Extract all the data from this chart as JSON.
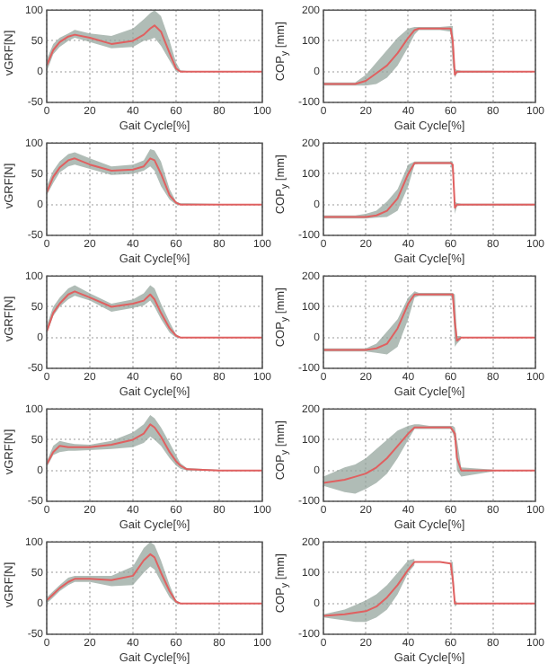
{
  "chart_data": [
    {
      "type": "line",
      "xlabel": "Gait Cycle[%]",
      "ylabel": "vGRF[N]",
      "xlim": [
        0,
        100
      ],
      "xticks": [
        0,
        20,
        40,
        60,
        80,
        100
      ],
      "ylim": [
        -50,
        100
      ],
      "yticks": [
        -50,
        0,
        50,
        100
      ],
      "grid": true,
      "x": [
        0,
        3,
        6,
        10,
        13,
        20,
        30,
        40,
        45,
        48,
        50,
        53,
        57,
        60,
        62,
        65,
        80,
        100
      ],
      "series": [
        {
          "color": "#e06060",
          "values": [
            10,
            35,
            48,
            57,
            60,
            55,
            45,
            50,
            60,
            70,
            75,
            65,
            30,
            5,
            0,
            0,
            0,
            0
          ],
          "lower": [
            0,
            28,
            40,
            50,
            55,
            48,
            38,
            40,
            50,
            52,
            55,
            42,
            18,
            0,
            0,
            0,
            0,
            null
          ],
          "upper": [
            20,
            45,
            55,
            62,
            68,
            62,
            58,
            70,
            85,
            95,
            100,
            90,
            50,
            15,
            2,
            1,
            1,
            null
          ]
        }
      ]
    },
    {
      "type": "line",
      "xlabel": "Gait Cycle[%]",
      "ylabel": "COP$_{y}$ [mm]",
      "xlim": [
        0,
        100
      ],
      "xticks": [
        0,
        20,
        40,
        60,
        80,
        100
      ],
      "ylim": [
        -100,
        200
      ],
      "yticks": [
        -100,
        0,
        100,
        200
      ],
      "grid": true,
      "x": [
        0,
        10,
        15,
        20,
        25,
        30,
        35,
        40,
        43,
        45,
        50,
        55,
        60,
        61,
        62,
        63,
        65,
        80,
        100
      ],
      "series": [
        {
          "color": "#e06060",
          "values": [
            -40,
            -40,
            -40,
            -30,
            -5,
            20,
            60,
            110,
            135,
            140,
            140,
            140,
            140,
            100,
            -10,
            0,
            0,
            0,
            0
          ],
          "lower": [
            -45,
            -45,
            -45,
            -45,
            -40,
            -20,
            20,
            80,
            120,
            135,
            135,
            135,
            130,
            20,
            -20,
            -5,
            -3,
            -3,
            null
          ],
          "upper": [
            -35,
            -35,
            -35,
            -10,
            30,
            70,
            110,
            140,
            145,
            145,
            145,
            145,
            148,
            148,
            10,
            5,
            3,
            3,
            null
          ]
        }
      ]
    },
    {
      "type": "line",
      "xlabel": "Gait Cycle[%]",
      "ylabel": "vGRF[N]",
      "xlim": [
        0,
        100
      ],
      "xticks": [
        0,
        20,
        40,
        60,
        80,
        100
      ],
      "ylim": [
        -50,
        100
      ],
      "yticks": [
        -50,
        0,
        50,
        100
      ],
      "grid": true,
      "x": [
        0,
        3,
        6,
        10,
        13,
        20,
        30,
        40,
        45,
        48,
        50,
        53,
        57,
        60,
        62,
        65,
        80,
        100
      ],
      "series": [
        {
          "color": "#e06060",
          "values": [
            20,
            45,
            60,
            72,
            75,
            65,
            55,
            57,
            62,
            75,
            72,
            50,
            15,
            3,
            0,
            0,
            0,
            0
          ],
          "lower": [
            15,
            35,
            52,
            62,
            65,
            58,
            48,
            50,
            55,
            62,
            55,
            30,
            8,
            0,
            0,
            0,
            0,
            0
          ],
          "upper": [
            30,
            55,
            70,
            82,
            85,
            75,
            62,
            65,
            72,
            90,
            88,
            70,
            25,
            5,
            2,
            2,
            1,
            1
          ]
        }
      ]
    },
    {
      "type": "line",
      "xlabel": "Gait Cycle[%]",
      "ylabel": "COP$_{y}$ [mm]",
      "xlim": [
        0,
        100
      ],
      "xticks": [
        0,
        20,
        40,
        60,
        80,
        100
      ],
      "ylim": [
        -100,
        200
      ],
      "yticks": [
        -100,
        0,
        100,
        200
      ],
      "grid": true,
      "x": [
        0,
        10,
        15,
        20,
        25,
        30,
        35,
        40,
        43,
        45,
        50,
        55,
        60,
        61,
        62,
        63,
        65,
        80,
        100
      ],
      "series": [
        {
          "color": "#e06060",
          "values": [
            -40,
            -40,
            -40,
            -40,
            -35,
            -20,
            20,
            100,
            135,
            135,
            135,
            135,
            135,
            130,
            -10,
            0,
            0,
            0,
            0
          ],
          "lower": [
            -45,
            -45,
            -45,
            -45,
            -42,
            -40,
            -20,
            60,
            130,
            132,
            132,
            132,
            132,
            100,
            -30,
            -5,
            -3,
            -3,
            -3
          ],
          "upper": [
            -35,
            -35,
            -35,
            -30,
            -20,
            10,
            50,
            130,
            140,
            140,
            140,
            140,
            140,
            140,
            10,
            5,
            3,
            3,
            3
          ]
        }
      ]
    },
    {
      "type": "line",
      "xlabel": "Gait Cycle[%]",
      "ylabel": "vGRF[N]",
      "xlim": [
        0,
        100
      ],
      "xticks": [
        0,
        20,
        40,
        60,
        80,
        100
      ],
      "ylim": [
        -50,
        100
      ],
      "yticks": [
        -50,
        0,
        50,
        100
      ],
      "grid": true,
      "x": [
        0,
        3,
        6,
        10,
        13,
        20,
        30,
        40,
        45,
        48,
        50,
        53,
        57,
        60,
        62,
        65,
        80,
        100
      ],
      "series": [
        {
          "color": "#e06060",
          "values": [
            10,
            40,
            55,
            70,
            75,
            65,
            50,
            55,
            60,
            70,
            62,
            40,
            15,
            3,
            0,
            0,
            0,
            0
          ],
          "lower": [
            5,
            35,
            50,
            62,
            68,
            60,
            42,
            48,
            52,
            60,
            50,
            30,
            8,
            0,
            0,
            null,
            null,
            null
          ],
          "upper": [
            20,
            50,
            65,
            80,
            85,
            72,
            55,
            62,
            72,
            85,
            80,
            55,
            25,
            5,
            1,
            null,
            null,
            null
          ]
        }
      ]
    },
    {
      "type": "line",
      "xlabel": "Gait Cycle[%]",
      "ylabel": "COP$_{y}$ [mm]",
      "xlim": [
        0,
        100
      ],
      "xticks": [
        0,
        20,
        40,
        60,
        80,
        100
      ],
      "ylim": [
        -100,
        200
      ],
      "yticks": [
        -100,
        0,
        100,
        200
      ],
      "grid": true,
      "x": [
        0,
        10,
        15,
        20,
        25,
        30,
        35,
        40,
        43,
        45,
        50,
        55,
        60,
        61,
        62,
        63,
        65,
        80,
        100
      ],
      "series": [
        {
          "color": "#e06060",
          "values": [
            -40,
            -40,
            -40,
            -40,
            -35,
            -20,
            30,
            110,
            140,
            140,
            140,
            140,
            140,
            140,
            50,
            -10,
            0,
            0,
            0
          ],
          "lower": [
            -45,
            -45,
            -45,
            -45,
            -50,
            -55,
            -30,
            60,
            130,
            135,
            135,
            135,
            135,
            120,
            -30,
            -20,
            -5,
            null,
            null
          ],
          "upper": [
            -35,
            -35,
            -35,
            -35,
            -20,
            20,
            60,
            130,
            150,
            145,
            145,
            145,
            145,
            145,
            140,
            5,
            5,
            null,
            null
          ]
        }
      ]
    },
    {
      "type": "line",
      "xlabel": "Gait Cycle[%]",
      "ylabel": "vGRF[N]",
      "xlim": [
        0,
        100
      ],
      "xticks": [
        0,
        20,
        40,
        60,
        80,
        100
      ],
      "ylim": [
        -50,
        100
      ],
      "yticks": [
        -50,
        0,
        50,
        100
      ],
      "grid": true,
      "x": [
        0,
        3,
        6,
        10,
        13,
        20,
        30,
        40,
        45,
        48,
        50,
        53,
        57,
        60,
        62,
        65,
        80,
        100
      ],
      "series": [
        {
          "color": "#e06060",
          "values": [
            10,
            30,
            40,
            38,
            38,
            38,
            42,
            50,
            60,
            75,
            70,
            55,
            30,
            15,
            8,
            2,
            0,
            0
          ],
          "lower": [
            5,
            25,
            30,
            32,
            32,
            33,
            35,
            38,
            45,
            55,
            50,
            40,
            20,
            8,
            3,
            0,
            0,
            null
          ],
          "upper": [
            15,
            40,
            48,
            45,
            43,
            42,
            48,
            62,
            75,
            90,
            85,
            70,
            45,
            25,
            12,
            4,
            1,
            null
          ]
        }
      ]
    },
    {
      "type": "line",
      "xlabel": "Gait Cycle[%]",
      "ylabel": "COP$_{y}$ [mm]",
      "xlim": [
        0,
        100
      ],
      "xticks": [
        0,
        20,
        40,
        60,
        80,
        100
      ],
      "ylim": [
        -100,
        200
      ],
      "yticks": [
        -100,
        0,
        100,
        200
      ],
      "grid": true,
      "x": [
        0,
        10,
        15,
        20,
        25,
        30,
        35,
        40,
        43,
        45,
        50,
        55,
        60,
        61,
        62,
        63,
        65,
        80,
        100
      ],
      "series": [
        {
          "color": "#e06060",
          "values": [
            -40,
            -30,
            -20,
            -10,
            10,
            40,
            80,
            120,
            140,
            140,
            140,
            140,
            140,
            130,
            120,
            40,
            0,
            0,
            0
          ],
          "lower": [
            -50,
            -70,
            -75,
            -60,
            -40,
            -10,
            40,
            100,
            135,
            135,
            135,
            135,
            135,
            120,
            100,
            0,
            -20,
            -3,
            null
          ],
          "upper": [
            -20,
            10,
            20,
            40,
            70,
            100,
            130,
            145,
            150,
            150,
            145,
            145,
            145,
            145,
            140,
            100,
            10,
            3,
            null
          ]
        }
      ]
    },
    {
      "type": "line",
      "xlabel": "Gait Cycle[%]",
      "ylabel": "vGRF[N]",
      "xlim": [
        0,
        100
      ],
      "xticks": [
        0,
        20,
        40,
        60,
        80,
        100
      ],
      "ylim": [
        -50,
        100
      ],
      "yticks": [
        -50,
        0,
        50,
        100
      ],
      "grid": true,
      "x": [
        0,
        3,
        6,
        10,
        13,
        20,
        30,
        40,
        45,
        48,
        50,
        53,
        57,
        60,
        62,
        65,
        80,
        100
      ],
      "series": [
        {
          "color": "#e06060",
          "values": [
            5,
            15,
            25,
            35,
            40,
            40,
            38,
            45,
            70,
            80,
            75,
            50,
            20,
            3,
            0,
            0,
            0,
            0
          ],
          "lower": [
            0,
            10,
            20,
            30,
            35,
            35,
            28,
            30,
            50,
            60,
            55,
            35,
            10,
            0,
            0,
            null,
            null,
            null
          ],
          "upper": [
            10,
            20,
            30,
            42,
            45,
            45,
            45,
            60,
            90,
            100,
            95,
            70,
            30,
            5,
            1,
            null,
            null,
            null
          ]
        }
      ]
    },
    {
      "type": "line",
      "xlabel": "Gait Cycle[%]",
      "ylabel": "COP$_{y}$ [mm]",
      "xlim": [
        0,
        100
      ],
      "xticks": [
        0,
        20,
        40,
        60,
        80,
        100
      ],
      "ylim": [
        -100,
        200
      ],
      "yticks": [
        -100,
        0,
        100,
        200
      ],
      "grid": true,
      "x": [
        0,
        10,
        15,
        20,
        25,
        30,
        35,
        40,
        43,
        45,
        50,
        55,
        60,
        61,
        62,
        63,
        65,
        80,
        100
      ],
      "series": [
        {
          "color": "#e06060",
          "values": [
            -40,
            -35,
            -30,
            -25,
            -10,
            20,
            60,
            110,
            135,
            135,
            135,
            135,
            130,
            80,
            0,
            0,
            0,
            0,
            0
          ],
          "lower": [
            -45,
            -55,
            -60,
            -60,
            -45,
            -20,
            30,
            100,
            125,
            null,
            null,
            null,
            125,
            60,
            -10,
            -5,
            null,
            null,
            null
          ],
          "upper": [
            -35,
            -20,
            -5,
            10,
            30,
            60,
            100,
            140,
            145,
            null,
            null,
            null,
            135,
            135,
            10,
            5,
            null,
            null,
            null
          ]
        }
      ]
    }
  ]
}
